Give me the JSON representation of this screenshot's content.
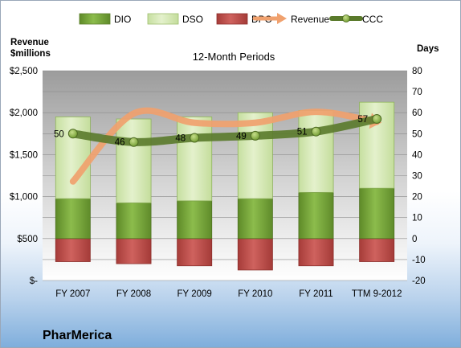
{
  "chart_data": {
    "type": "bar",
    "title": "12-Month Periods",
    "footer": "PharMerica",
    "y_left_label_line1": "Revenue",
    "y_left_label_line2": "$millions",
    "y_right_label": "Days",
    "categories": [
      "FY 2007",
      "FY 2008",
      "FY 2009",
      "FY 2010",
      "FY 2011",
      "TTM 9-2012"
    ],
    "left_axis": {
      "min": 0,
      "max": 2500,
      "ticks": [
        0,
        500,
        1000,
        1500,
        2000,
        2500
      ],
      "tick_labels": [
        "$-",
        "$500",
        "$1,000",
        "$1,500",
        "$2,000",
        "$2,500"
      ]
    },
    "right_axis": {
      "min": -20,
      "max": 80,
      "ticks": [
        -20,
        -10,
        0,
        10,
        20,
        30,
        40,
        50,
        60,
        70,
        80
      ],
      "tick_labels": [
        "-20",
        "-10",
        "0",
        "10",
        "20",
        "30",
        "40",
        "50",
        "60",
        "70",
        "80"
      ]
    },
    "grid": true,
    "legend_position": "top",
    "series": [
      {
        "name": "DIO",
        "type": "stacked-bar",
        "axis": "right",
        "values": [
          19,
          17,
          18,
          19,
          22,
          24
        ],
        "color": "#74a237"
      },
      {
        "name": "DSO",
        "type": "stacked-bar",
        "axis": "right",
        "values": [
          39,
          40,
          40,
          41,
          39,
          41
        ],
        "color": "#d4e8b0"
      },
      {
        "name": "DPO",
        "type": "stacked-bar",
        "axis": "right",
        "values": [
          -11,
          -12,
          -13,
          -15,
          -13,
          -11
        ],
        "color": "#c0504d"
      },
      {
        "name": "Revenue",
        "type": "line",
        "axis": "left",
        "values": [
          1180,
          1990,
          1880,
          1880,
          2010,
          1890
        ],
        "color": "#f0a16e"
      },
      {
        "name": "CCC",
        "type": "line-markers",
        "axis": "right",
        "values": [
          50,
          46,
          48,
          49,
          51,
          57
        ],
        "labels": [
          "50",
          "46",
          "48",
          "49",
          "51",
          "57"
        ],
        "color": "#5a7a2b"
      }
    ]
  }
}
